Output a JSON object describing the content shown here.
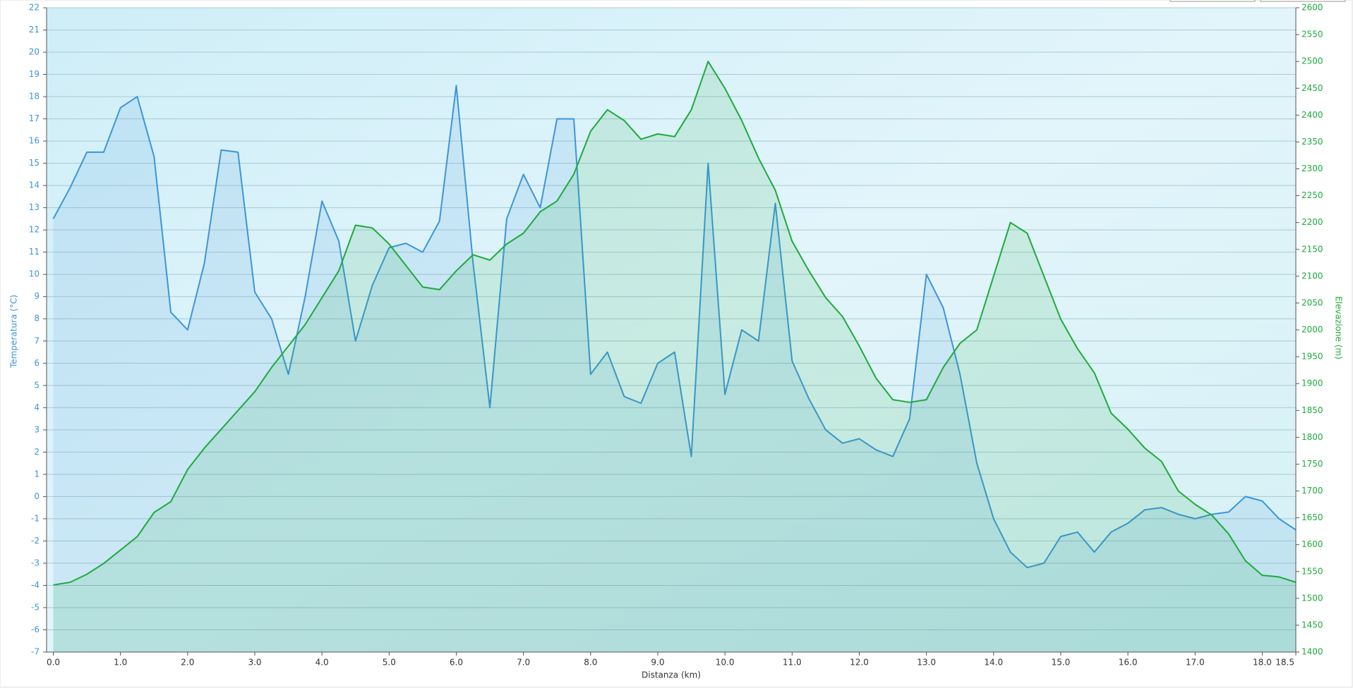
{
  "chart_data": {
    "type": "line",
    "x_label": "Distanza  (km)",
    "y_label": "Temperatura (°C)",
    "y2_label": "Elevazione (m)",
    "x": [
      0,
      0.25,
      0.5,
      0.75,
      1,
      1.25,
      1.5,
      1.75,
      2,
      2.25,
      2.5,
      2.75,
      3,
      3.25,
      3.5,
      3.75,
      4,
      4.25,
      4.5,
      4.75,
      5,
      5.25,
      5.5,
      5.75,
      6,
      6.25,
      6.5,
      6.75,
      7,
      7.25,
      7.5,
      7.75,
      8,
      8.25,
      8.5,
      8.75,
      9,
      9.25,
      9.5,
      9.75,
      10,
      10.25,
      10.5,
      10.75,
      11,
      11.25,
      11.5,
      11.75,
      12,
      12.25,
      12.5,
      12.75,
      13,
      13.25,
      13.5,
      13.75,
      14,
      14.25,
      14.5,
      14.75,
      15,
      15.25,
      15.5,
      15.75,
      16,
      16.25,
      16.5,
      16.75,
      17,
      17.25,
      17.5,
      17.75,
      18,
      18.25,
      18.5
    ],
    "series": [
      {
        "name": "Temperatura",
        "color": "#3d95d8",
        "axis": "y",
        "values": [
          12.5,
          13.9,
          15.5,
          15.5,
          17.5,
          18.0,
          15.3,
          8.3,
          7.5,
          10.5,
          15.6,
          15.5,
          9.2,
          8.0,
          5.5,
          9.0,
          13.3,
          11.5,
          7.0,
          9.5,
          11.2,
          11.4,
          11.0,
          12.4,
          18.5,
          10.5,
          4.0,
          12.5,
          14.5,
          13.0,
          17.0,
          17.0,
          5.5,
          6.5,
          4.5,
          4.2,
          6.0,
          6.5,
          1.8,
          15.0,
          4.6,
          7.5,
          7.0,
          13.2,
          6.1,
          4.4,
          3.0,
          2.4,
          2.6,
          2.1,
          1.8,
          3.5,
          10.0,
          8.5,
          5.5,
          1.5,
          -1.0,
          -2.5,
          -3.2,
          -3.0,
          -1.8,
          -1.6,
          -2.5,
          -1.6,
          -1.2,
          -0.6,
          -0.5,
          -0.8,
          -1.0,
          -0.8,
          -0.7,
          0.0,
          -0.2,
          -1.0,
          -1.5
        ]
      },
      {
        "name": "Elevazione",
        "color": "#1faa3c",
        "axis": "y2",
        "values": [
          1525,
          1530,
          1545,
          1565,
          1590,
          1615,
          1660,
          1680,
          1740,
          1780,
          1815,
          1850,
          1885,
          1930,
          1970,
          2010,
          2060,
          2110,
          2195,
          2190,
          2160,
          2120,
          2080,
          2075,
          2110,
          2140,
          2130,
          2160,
          2180,
          2220,
          2240,
          2290,
          2370,
          2410,
          2390,
          2355,
          2365,
          2360,
          2410,
          2500,
          2450,
          2390,
          2320,
          2260,
          2165,
          2110,
          2060,
          2025,
          1970,
          1910,
          1870,
          1865,
          1870,
          1930,
          1975,
          2000,
          2100,
          2200,
          2180,
          2100,
          2020,
          1965,
          1920,
          1845,
          1815,
          1780,
          1755,
          1700,
          1675,
          1655,
          1620,
          1570,
          1543,
          1540,
          1530
        ]
      }
    ],
    "xlim": [
      -0.1,
      18.5
    ],
    "xticks": [
      {
        "value": 0,
        "label": "0.0"
      },
      {
        "value": 1,
        "label": "1.0"
      },
      {
        "value": 2,
        "label": "2.0"
      },
      {
        "value": 3,
        "label": "3.0"
      },
      {
        "value": 4,
        "label": "4.0"
      },
      {
        "value": 5,
        "label": "5.0"
      },
      {
        "value": 6,
        "label": "6.0"
      },
      {
        "value": 7,
        "label": "7.0"
      },
      {
        "value": 8,
        "label": "8.0"
      },
      {
        "value": 9,
        "label": "9.0"
      },
      {
        "value": 10,
        "label": "10.0"
      },
      {
        "value": 11,
        "label": "11.0"
      },
      {
        "value": 12,
        "label": "12.0"
      },
      {
        "value": 13,
        "label": "13.0"
      },
      {
        "value": 14,
        "label": "14.0"
      },
      {
        "value": 15,
        "label": "15.0"
      },
      {
        "value": 16,
        "label": "16.0"
      },
      {
        "value": 17,
        "label": "17.0"
      },
      {
        "value": 18,
        "label": "18.0"
      },
      18.5
    ],
    "ylim": [
      -7,
      22
    ],
    "yticks": [
      -7,
      -6,
      -5,
      -4,
      -3,
      -2,
      -1,
      0,
      1,
      2,
      3,
      4,
      5,
      6,
      7,
      8,
      9,
      10,
      11,
      12,
      13,
      14,
      15,
      16,
      17,
      18,
      19,
      20,
      21,
      22
    ],
    "y2lim": [
      1400,
      2600
    ],
    "y2ticks": [
      1400,
      1450,
      1500,
      1550,
      1600,
      1650,
      1700,
      1750,
      1800,
      1850,
      1900,
      1950,
      2000,
      2050,
      2100,
      2150,
      2200,
      2250,
      2300,
      2350,
      2400,
      2450,
      2500,
      2550,
      2600
    ],
    "grid": true
  }
}
